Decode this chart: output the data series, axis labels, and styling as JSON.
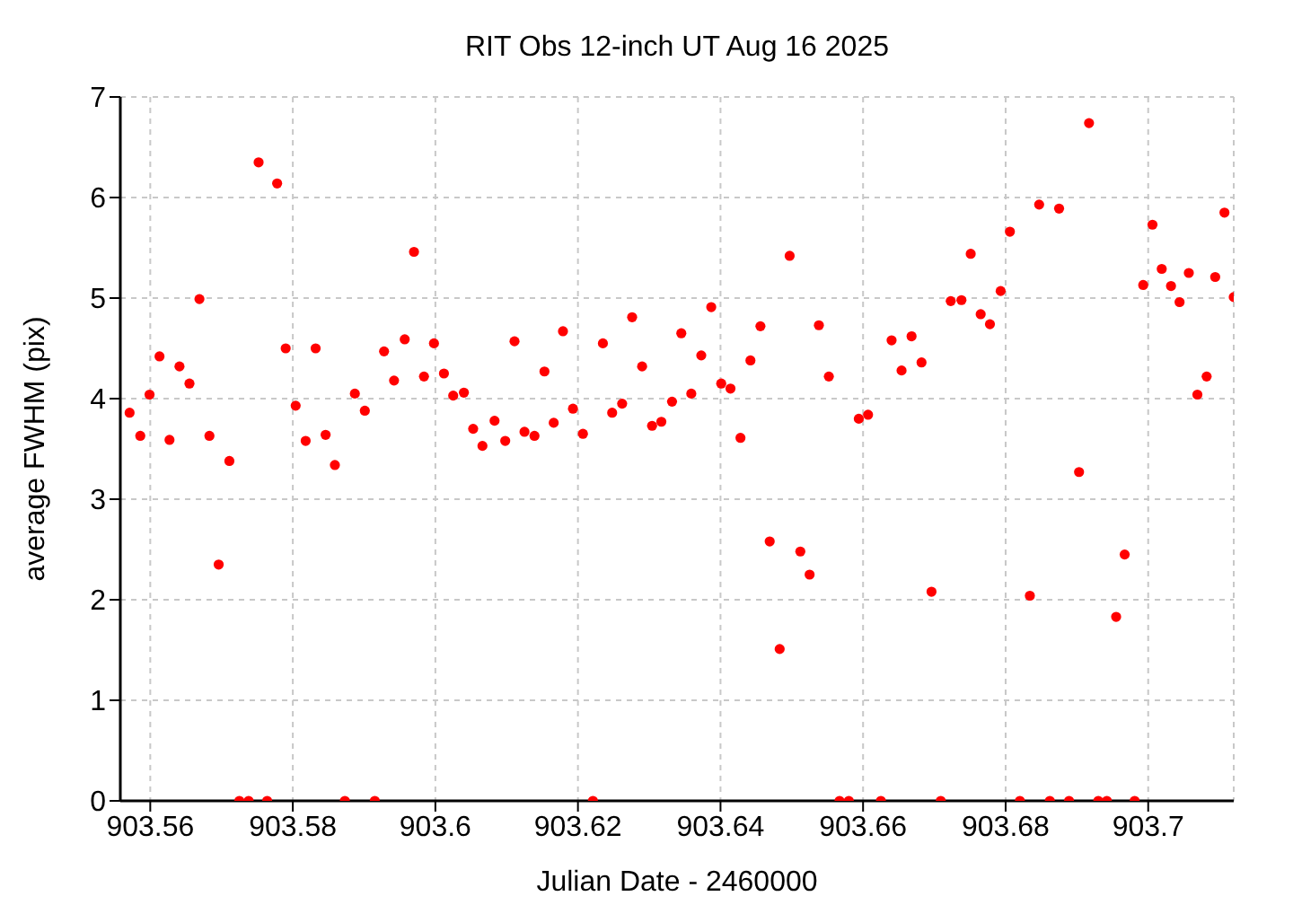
{
  "chart_data": {
    "type": "scatter",
    "title": "RIT Obs 12-inch UT Aug 16 2025",
    "xlabel": "Julian Date - 2460000",
    "ylabel": "average FWHM (pix)",
    "x": [
      903.5571,
      903.5586,
      903.5599,
      903.5613,
      903.5627,
      903.5641,
      903.5655,
      903.5669,
      903.5683,
      903.5696,
      903.5711,
      903.5725,
      903.5738,
      903.5752,
      903.5764,
      903.5778,
      903.579,
      903.5804,
      903.5818,
      903.5832,
      903.5846,
      903.5859,
      903.5873,
      903.5887,
      903.5901,
      903.5915,
      903.5928,
      903.5942,
      903.5957,
      903.597,
      903.5984,
      903.5998,
      903.6012,
      903.6025,
      903.604,
      903.6053,
      903.6066,
      903.6083,
      903.6098,
      903.6111,
      903.6125,
      903.6139,
      903.6153,
      903.6166,
      903.6179,
      903.6193,
      903.6207,
      903.6221,
      903.6235,
      903.6248,
      903.6262,
      903.6276,
      903.629,
      903.6304,
      903.6317,
      903.6332,
      903.6345,
      903.6359,
      903.6373,
      903.6387,
      903.6401,
      903.6414,
      903.6428,
      903.6442,
      903.6456,
      903.6469,
      903.6483,
      903.6497,
      903.6512,
      903.6525,
      903.6538,
      903.6552,
      903.6567,
      903.658,
      903.6594,
      903.6607,
      903.6625,
      903.664,
      903.6654,
      903.6668,
      903.6682,
      903.6696,
      903.6709,
      903.6723,
      903.6738,
      903.6751,
      903.6765,
      903.6778,
      903.6793,
      903.6806,
      903.682,
      903.6834,
      903.6847,
      903.6862,
      903.6875,
      903.6889,
      903.6903,
      903.6917,
      903.693,
      903.6942,
      903.6955,
      903.6967,
      903.6981,
      903.6993,
      903.7006,
      903.7019,
      903.7032,
      903.7044,
      903.7057,
      903.7069,
      903.7082,
      903.7094,
      903.7107,
      903.712
    ],
    "series": [
      {
        "color": "#ff0000",
        "values": [
          3.86,
          3.63,
          4.04,
          4.42,
          3.59,
          4.32,
          4.15,
          4.99,
          3.63,
          2.35,
          3.38,
          0,
          0,
          6.35,
          0,
          6.14,
          4.5,
          3.93,
          3.58,
          4.5,
          3.64,
          3.34,
          0,
          4.05,
          3.88,
          0,
          4.47,
          4.18,
          4.59,
          5.46,
          4.22,
          4.55,
          4.25,
          4.03,
          4.06,
          3.7,
          3.53,
          3.78,
          3.58,
          4.57,
          3.67,
          3.63,
          4.27,
          3.76,
          4.67,
          3.9,
          3.65,
          0,
          4.55,
          3.86,
          3.95,
          4.81,
          4.32,
          3.73,
          3.77,
          3.97,
          4.65,
          4.05,
          4.43,
          4.91,
          4.15,
          4.1,
          3.61,
          4.38,
          4.72,
          2.58,
          1.51,
          5.42,
          2.48,
          2.25,
          4.73,
          4.22,
          0,
          0,
          3.8,
          3.84,
          0,
          4.58,
          4.28,
          4.62,
          4.36,
          2.08,
          0,
          4.97,
          4.98,
          5.44,
          4.84,
          4.74,
          5.07,
          5.66,
          0,
          2.04,
          5.93,
          0,
          5.89,
          0,
          3.27,
          6.74,
          0,
          0,
          1.83,
          2.45,
          0,
          5.13,
          5.73,
          5.29,
          5.12,
          4.96,
          5.25,
          4.04,
          4.22,
          5.21,
          5.85,
          5.01
        ]
      }
    ],
    "xlim": [
      903.5558,
      903.712
    ],
    "xticks": [
      903.56,
      903.58,
      903.6,
      903.62,
      903.64,
      903.66,
      903.68,
      903.7
    ],
    "ylim": [
      0,
      7
    ],
    "yticks": [
      0,
      1,
      2,
      3,
      4,
      5,
      6,
      7
    ],
    "grid": true,
    "marker": "circle"
  }
}
